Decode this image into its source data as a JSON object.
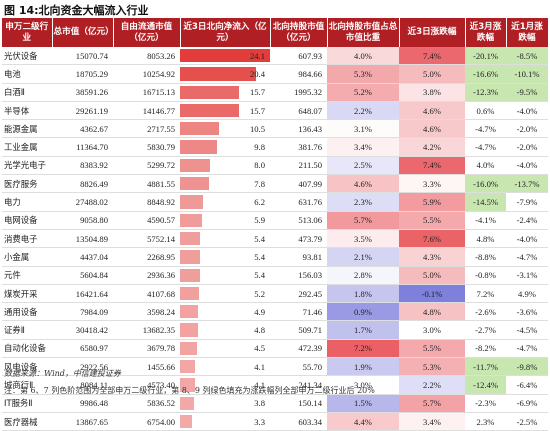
{
  "title": "图 14:北向资金大幅流入行业",
  "columns": [
    "申万二级行业",
    "总市值（亿元）",
    "自由流通市值（亿元）",
    "近3日北向净流入（亿元）",
    "北向持股市值（亿元）",
    "北向持股市值占总市值比重",
    "近3日涨跌幅",
    "近3月涨跌幅",
    "近1月涨跌幅"
  ],
  "rows": [
    {
      "industry": "光伏设备",
      "total_cap": "15070.74",
      "free_cap": "8053.26",
      "inflow": "24.1",
      "hold": "607.93",
      "ratio": "4.0%",
      "chg3d": "7.4%",
      "chg3m": "-20.1%",
      "chg1m": "-8.5%"
    },
    {
      "industry": "电池",
      "total_cap": "18705.29",
      "free_cap": "10254.92",
      "inflow": "20.4",
      "hold": "984.66",
      "ratio": "5.3%",
      "chg3d": "5.0%",
      "chg3m": "-16.6%",
      "chg1m": "-10.1%"
    },
    {
      "industry": "白酒Ⅱ",
      "total_cap": "38591.26",
      "free_cap": "16715.13",
      "inflow": "15.7",
      "hold": "1995.32",
      "ratio": "5.2%",
      "chg3d": "3.8%",
      "chg3m": "-12.3%",
      "chg1m": "-9.5%"
    },
    {
      "industry": "半导体",
      "total_cap": "29261.19",
      "free_cap": "14146.77",
      "inflow": "15.7",
      "hold": "648.07",
      "ratio": "2.2%",
      "chg3d": "4.6%",
      "chg3m": "0.6%",
      "chg1m": "-4.0%"
    },
    {
      "industry": "能源金属",
      "total_cap": "4362.67",
      "free_cap": "2717.55",
      "inflow": "10.5",
      "hold": "136.43",
      "ratio": "3.1%",
      "chg3d": "4.6%",
      "chg3m": "-4.7%",
      "chg1m": "-2.0%"
    },
    {
      "industry": "工业金属",
      "total_cap": "11364.70",
      "free_cap": "5830.79",
      "inflow": "9.8",
      "hold": "381.76",
      "ratio": "3.4%",
      "chg3d": "4.2%",
      "chg3m": "-4.7%",
      "chg1m": "-2.0%"
    },
    {
      "industry": "光学光电子",
      "total_cap": "8383.92",
      "free_cap": "5299.72",
      "inflow": "8.0",
      "hold": "211.50",
      "ratio": "2.5%",
      "chg3d": "7.4%",
      "chg3m": "4.0%",
      "chg1m": "-4.0%"
    },
    {
      "industry": "医疗服务",
      "total_cap": "8826.49",
      "free_cap": "4881.55",
      "inflow": "7.8",
      "hold": "407.99",
      "ratio": "4.6%",
      "chg3d": "3.3%",
      "chg3m": "-16.0%",
      "chg1m": "-13.7%"
    },
    {
      "industry": "电力",
      "total_cap": "27488.02",
      "free_cap": "8848.92",
      "inflow": "6.2",
      "hold": "631.76",
      "ratio": "2.3%",
      "chg3d": "5.9%",
      "chg3m": "-14.5%",
      "chg1m": "-7.9%"
    },
    {
      "industry": "电网设备",
      "total_cap": "9058.80",
      "free_cap": "4590.57",
      "inflow": "5.9",
      "hold": "513.06",
      "ratio": "5.7%",
      "chg3d": "5.5%",
      "chg3m": "-4.1%",
      "chg1m": "-2.4%"
    },
    {
      "industry": "消费电子",
      "total_cap": "13504.89",
      "free_cap": "5752.14",
      "inflow": "5.4",
      "hold": "473.79",
      "ratio": "3.5%",
      "chg3d": "7.6%",
      "chg3m": "4.8%",
      "chg1m": "-4.0%"
    },
    {
      "industry": "小金属",
      "total_cap": "4437.04",
      "free_cap": "2268.95",
      "inflow": "5.4",
      "hold": "93.81",
      "ratio": "2.1%",
      "chg3d": "4.3%",
      "chg3m": "-8.8%",
      "chg1m": "-4.7%"
    },
    {
      "industry": "元件",
      "total_cap": "5604.84",
      "free_cap": "2936.36",
      "inflow": "5.4",
      "hold": "156.03",
      "ratio": "2.8%",
      "chg3d": "5.0%",
      "chg3m": "-0.8%",
      "chg1m": "-3.1%"
    },
    {
      "industry": "煤炭开采",
      "total_cap": "16421.64",
      "free_cap": "4107.68",
      "inflow": "5.2",
      "hold": "292.45",
      "ratio": "1.8%",
      "chg3d": "-0.1%",
      "chg3m": "7.2%",
      "chg1m": "4.9%"
    },
    {
      "industry": "通用设备",
      "total_cap": "7984.09",
      "free_cap": "3598.24",
      "inflow": "4.9",
      "hold": "71.46",
      "ratio": "0.9%",
      "chg3d": "4.8%",
      "chg3m": "-2.6%",
      "chg1m": "-3.6%"
    },
    {
      "industry": "证券Ⅱ",
      "total_cap": "30418.42",
      "free_cap": "13682.35",
      "inflow": "4.8",
      "hold": "509.71",
      "ratio": "1.7%",
      "chg3d": "3.0%",
      "chg3m": "-2.7%",
      "chg1m": "-4.5%"
    },
    {
      "industry": "自动化设备",
      "total_cap": "6580.97",
      "free_cap": "3679.78",
      "inflow": "4.5",
      "hold": "472.39",
      "ratio": "7.2%",
      "chg3d": "5.5%",
      "chg3m": "-8.2%",
      "chg1m": "-4.7%"
    },
    {
      "industry": "风电设备",
      "total_cap": "2922.56",
      "free_cap": "1455.66",
      "inflow": "4.1",
      "hold": "55.70",
      "ratio": "1.9%",
      "chg3d": "5.3%",
      "chg3m": "-11.7%",
      "chg1m": "-9.8%"
    },
    {
      "industry": "城商行Ⅱ",
      "total_cap": "8084.11",
      "free_cap": "4573.40",
      "inflow": "4.1",
      "hold": "241.34",
      "ratio": "3.0%",
      "chg3d": "2.2%",
      "chg3m": "-12.4%",
      "chg1m": "-6.4%"
    },
    {
      "industry": "IT服务Ⅱ",
      "total_cap": "9986.48",
      "free_cap": "5836.52",
      "inflow": "3.8",
      "hold": "150.14",
      "ratio": "1.5%",
      "chg3d": "5.7%",
      "chg3m": "-2.3%",
      "chg1m": "-6.9%"
    },
    {
      "industry": "医疗器械",
      "total_cap": "13867.65",
      "free_cap": "6754.00",
      "inflow": "3.3",
      "hold": "603.34",
      "ratio": "4.4%",
      "chg3d": "3.4%",
      "chg3m": "2.3%",
      "chg1m": "-2.5%"
    }
  ],
  "source": "数据来源：Wind，中信建投证券",
  "note": "注：第 6、7 列色阶范围为全部申万二级行业，第 8、9 列绿色填充为涨跌幅列全部申万二级行业后 20%",
  "colors": {
    "header_bg": "#b01f24",
    "bar": "#e23d3a",
    "ratio_high": "#e8555a",
    "ratio_low": "#6f6fd8",
    "chg_high": "#e8555a",
    "chg_low": "#6f6fd8",
    "green_fill": "#c8e6b0"
  }
}
